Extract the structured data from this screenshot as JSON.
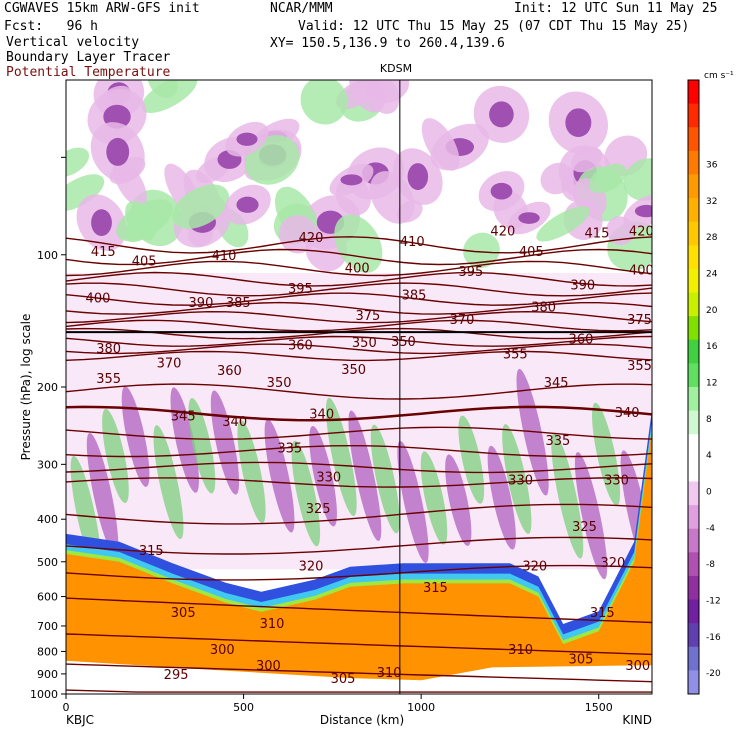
{
  "header": {
    "model": "CGWAVES 15km ARW-GFS init",
    "fcst": "Fcst:   96 h",
    "org": "NCAR/MMM",
    "init": "Init: 12 UTC Sun 11 May 25",
    "valid": "Valid: 12 UTC Thu 15 May 25 (07 CDT Thu 15 May 25)",
    "xy": "XY= 150.5,136.9 to 260.4,139.6",
    "fields": [
      "Vertical velocity",
      "Boundary Layer Tracer",
      "Potential Temperature"
    ]
  },
  "chart_data": {
    "type": "heatmap",
    "title": "KDSM",
    "xlabel": "Distance (km)",
    "ylabel": "Pressure (hPa), log scale",
    "xlim": [
      0,
      1650
    ],
    "ylim": [
      1000,
      40
    ],
    "x_ticks": [
      0,
      500,
      1000,
      1500
    ],
    "y_ticks": [
      100,
      200,
      300,
      400,
      500,
      600,
      700,
      800,
      900,
      1000
    ],
    "endpoints": {
      "left": "KBJC",
      "right": "KIND"
    },
    "marker_x_km": 940,
    "colorbar": {
      "units": "cm s⁻¹",
      "labels": [
        36,
        32,
        28,
        24,
        20,
        16,
        12,
        8,
        4,
        0,
        -4,
        -8,
        -12,
        -16,
        -20
      ],
      "colors": [
        "#ff0000",
        "#ff2a00",
        "#ff5500",
        "#ff7a00",
        "#ff9a00",
        "#ffb000",
        "#ffc800",
        "#ffe000",
        "#f0f000",
        "#c8f000",
        "#80e000",
        "#40d040",
        "#60e060",
        "#a0f0a0",
        "#d0f8d0",
        "#ffffff",
        "#ffffff",
        "#f0c8f0",
        "#e0a0e0",
        "#c878c8",
        "#b050b0",
        "#9030a0",
        "#7020a0",
        "#6040b0",
        "#7070d0",
        "#9090e8"
      ]
    },
    "theta_contour_labels": [
      {
        "x": 105,
        "p": 98,
        "v": 415
      },
      {
        "x": 220,
        "p": 103,
        "v": 405
      },
      {
        "x": 445,
        "p": 100,
        "v": 410
      },
      {
        "x": 690,
        "p": 91,
        "v": 420
      },
      {
        "x": 975,
        "p": 93,
        "v": 410
      },
      {
        "x": 1230,
        "p": 88,
        "v": 420
      },
      {
        "x": 1495,
        "p": 89,
        "v": 415
      },
      {
        "x": 1620,
        "p": 88,
        "v": 420
      },
      {
        "x": 90,
        "p": 125,
        "v": 400
      },
      {
        "x": 380,
        "p": 128,
        "v": 390
      },
      {
        "x": 485,
        "p": 128,
        "v": 385
      },
      {
        "x": 660,
        "p": 119,
        "v": 395
      },
      {
        "x": 820,
        "p": 107,
        "v": 400
      },
      {
        "x": 1140,
        "p": 109,
        "v": 395
      },
      {
        "x": 1310,
        "p": 98,
        "v": 405
      },
      {
        "x": 1455,
        "p": 117,
        "v": 390
      },
      {
        "x": 1620,
        "p": 108,
        "v": 400
      },
      {
        "x": 850,
        "p": 137,
        "v": 375
      },
      {
        "x": 980,
        "p": 123,
        "v": 385
      },
      {
        "x": 1115,
        "p": 140,
        "v": 370
      },
      {
        "x": 1345,
        "p": 131,
        "v": 380
      },
      {
        "x": 1615,
        "p": 140,
        "v": 375
      },
      {
        "x": 120,
        "p": 163,
        "v": 380
      },
      {
        "x": 290,
        "p": 176,
        "v": 370
      },
      {
        "x": 460,
        "p": 183,
        "v": 360
      },
      {
        "x": 660,
        "p": 160,
        "v": 360
      },
      {
        "x": 840,
        "p": 158,
        "v": 350
      },
      {
        "x": 950,
        "p": 157,
        "v": 350
      },
      {
        "x": 1265,
        "p": 168,
        "v": 355
      },
      {
        "x": 1450,
        "p": 155,
        "v": 360
      },
      {
        "x": 1615,
        "p": 178,
        "v": 355
      },
      {
        "x": 120,
        "p": 191,
        "v": 355
      },
      {
        "x": 600,
        "p": 195,
        "v": 350
      },
      {
        "x": 810,
        "p": 182,
        "v": 350
      },
      {
        "x": 1380,
        "p": 195,
        "v": 345
      },
      {
        "x": 330,
        "p": 232,
        "v": 345
      },
      {
        "x": 475,
        "p": 239,
        "v": 340
      },
      {
        "x": 720,
        "p": 230,
        "v": 340
      },
      {
        "x": 1580,
        "p": 228,
        "v": 340
      },
      {
        "x": 630,
        "p": 275,
        "v": 335
      },
      {
        "x": 1385,
        "p": 264,
        "v": 335
      },
      {
        "x": 740,
        "p": 320,
        "v": 330
      },
      {
        "x": 1280,
        "p": 325,
        "v": 330
      },
      {
        "x": 1550,
        "p": 325,
        "v": 330
      },
      {
        "x": 710,
        "p": 377,
        "v": 325
      },
      {
        "x": 1460,
        "p": 415,
        "v": 325
      },
      {
        "x": 240,
        "p": 470,
        "v": 315
      },
      {
        "x": 690,
        "p": 510,
        "v": 320
      },
      {
        "x": 1320,
        "p": 510,
        "v": 320
      },
      {
        "x": 1540,
        "p": 500,
        "v": 320
      },
      {
        "x": 1040,
        "p": 570,
        "v": 315
      },
      {
        "x": 1510,
        "p": 650,
        "v": 315
      },
      {
        "x": 330,
        "p": 650,
        "v": 305
      },
      {
        "x": 580,
        "p": 690,
        "v": 310
      },
      {
        "x": 440,
        "p": 790,
        "v": 300
      },
      {
        "x": 570,
        "p": 860,
        "v": 300
      },
      {
        "x": 780,
        "p": 920,
        "v": 305
      },
      {
        "x": 910,
        "p": 890,
        "v": 310
      },
      {
        "x": 1280,
        "p": 790,
        "v": 310
      },
      {
        "x": 1450,
        "p": 830,
        "v": 305
      },
      {
        "x": 1610,
        "p": 860,
        "v": 300
      },
      {
        "x": 310,
        "p": 900,
        "v": 295
      }
    ]
  }
}
